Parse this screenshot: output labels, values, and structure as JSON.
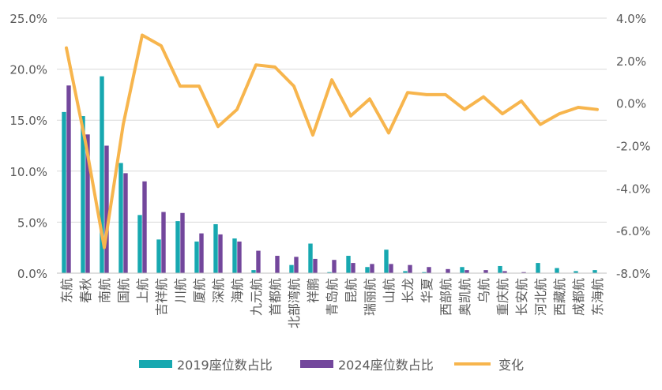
{
  "chart_data": {
    "type": "bar",
    "categories": [
      "东航",
      "春秋",
      "南航",
      "国航",
      "上航",
      "吉祥航",
      "川航",
      "厦航",
      "深航",
      "海航",
      "九元航",
      "首都航",
      "北部湾航",
      "祥鹏",
      "青岛航",
      "昆航",
      "瑞丽航",
      "山航",
      "长龙",
      "华夏",
      "西部航",
      "奥凯航",
      "乌航",
      "重庆航",
      "长安航",
      "河北航",
      "西藏航",
      "成都航",
      "东海航"
    ],
    "series": [
      {
        "name": "2019座位数占比",
        "type": "bar",
        "axis": "left",
        "color": "#17A8B0",
        "values": [
          15.8,
          15.4,
          19.3,
          10.8,
          5.7,
          3.3,
          5.1,
          3.1,
          4.8,
          3.4,
          0.3,
          0.0,
          0.8,
          2.9,
          0.1,
          1.7,
          0.6,
          2.3,
          0.2,
          0.1,
          0.0,
          0.6,
          0.0,
          0.7,
          0.0,
          1.0,
          0.5,
          0.2,
          0.3
        ]
      },
      {
        "name": "2024座位数占比",
        "type": "bar",
        "axis": "left",
        "color": "#73479C",
        "values": [
          18.4,
          13.6,
          12.5,
          9.8,
          9.0,
          6.0,
          5.9,
          3.9,
          3.8,
          3.1,
          2.2,
          1.7,
          1.6,
          1.4,
          1.3,
          1.0,
          0.9,
          0.9,
          0.8,
          0.6,
          0.4,
          0.3,
          0.3,
          0.2,
          0.1,
          0.0,
          0.0,
          0.0,
          0.0
        ]
      },
      {
        "name": "变化",
        "type": "line",
        "axis": "right",
        "color": "#F7B54D",
        "values": [
          2.6,
          -1.8,
          -6.8,
          -1.0,
          3.2,
          2.7,
          0.8,
          0.8,
          -1.1,
          -0.3,
          1.8,
          1.7,
          0.8,
          -1.5,
          1.1,
          -0.6,
          0.2,
          -1.4,
          0.5,
          0.4,
          0.4,
          -0.3,
          0.3,
          -0.5,
          0.1,
          -1.0,
          -0.5,
          -0.2,
          -0.3
        ]
      }
    ],
    "y_left": {
      "min": 0,
      "max": 25,
      "step": 5,
      "ticks": [
        "0.0%",
        "5.0%",
        "10.0%",
        "15.0%",
        "20.0%",
        "25.0%"
      ]
    },
    "y_right": {
      "min": -8,
      "max": 4,
      "step": 2,
      "ticks": [
        "-8.0%",
        "-6.0%",
        "-4.0%",
        "-2.0%",
        "0.0%",
        "2.0%",
        "4.0%"
      ]
    },
    "grid": true,
    "legend_position": "bottom",
    "colors": {
      "grid": "#D9D9D9",
      "text": "#595959",
      "axis": "#BFBFBF"
    }
  }
}
